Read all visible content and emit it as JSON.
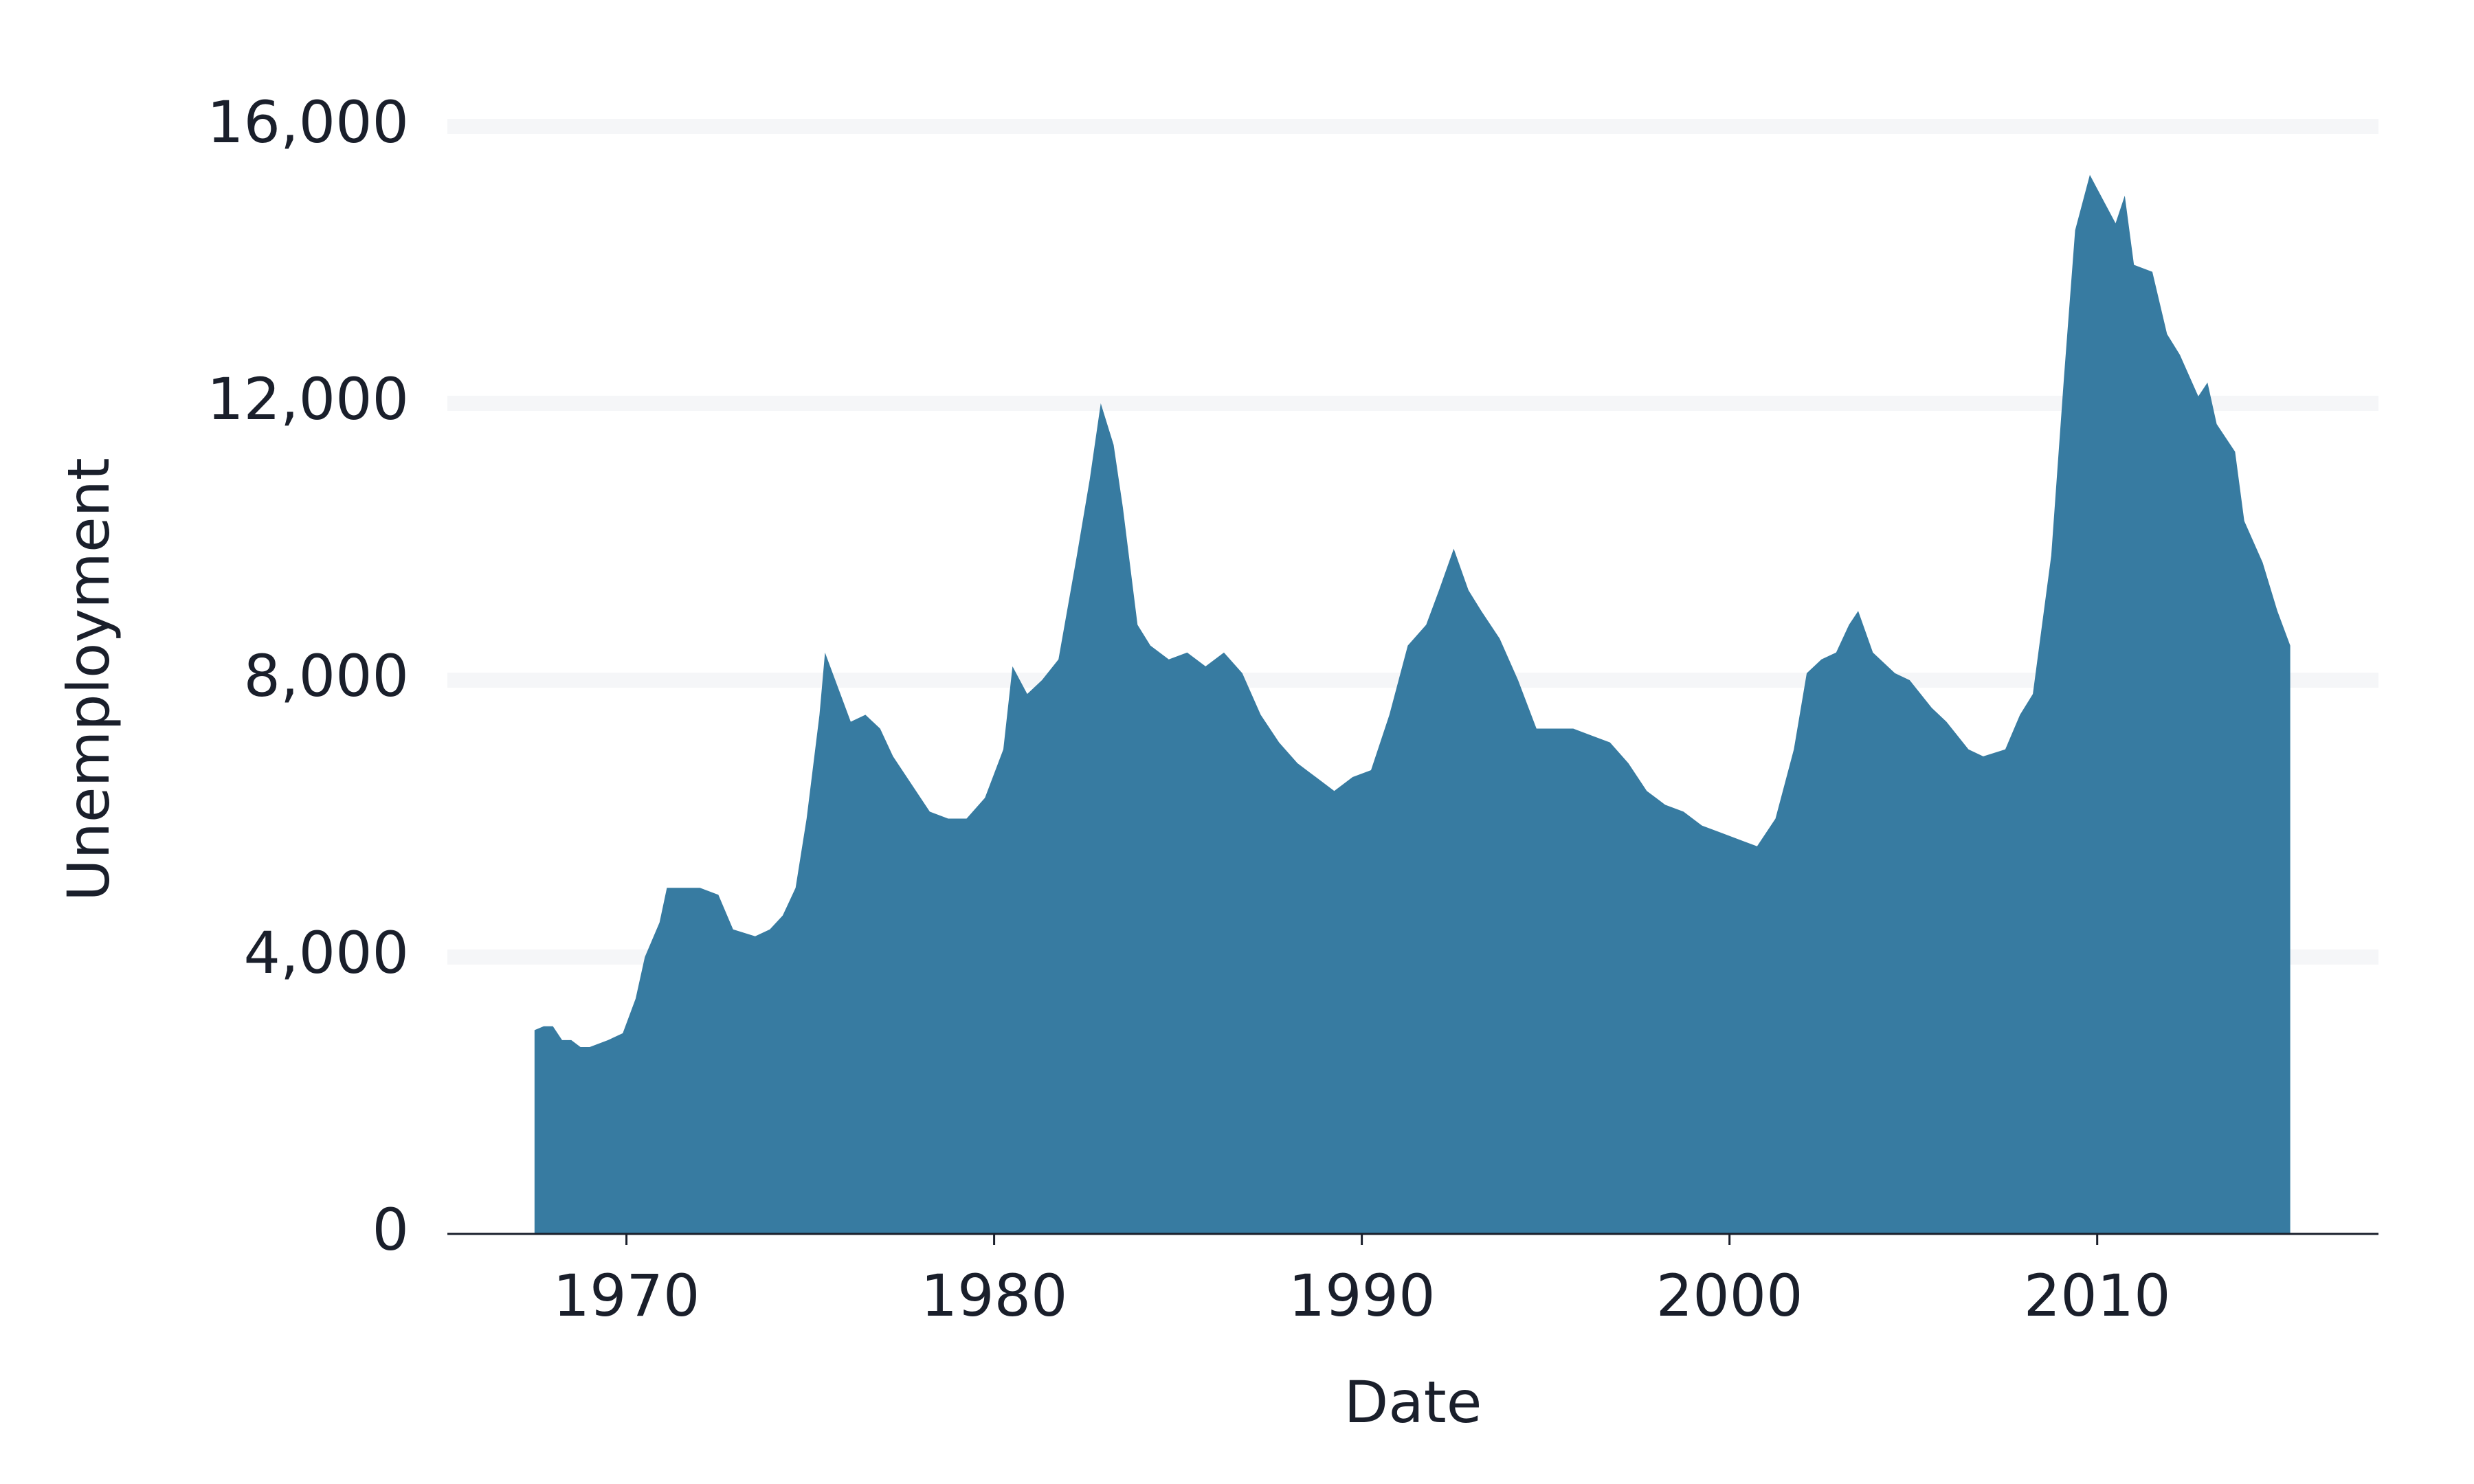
{
  "chart_data": {
    "type": "area",
    "xlabel": "Date",
    "ylabel": "Unemployment",
    "color": "#377ba1",
    "grid": true,
    "x": [
      1967.5,
      1967.75,
      1968.0,
      1968.25,
      1968.5,
      1968.75,
      1969.0,
      1969.5,
      1969.9,
      1970.25,
      1970.5,
      1970.9,
      1971.1,
      1971.5,
      1972.0,
      1972.5,
      1972.9,
      1973.5,
      1973.9,
      1974.25,
      1974.6,
      1974.9,
      1975.25,
      1975.4,
      1975.75,
      1976.1,
      1976.5,
      1976.9,
      1977.25,
      1977.75,
      1978.25,
      1978.75,
      1979.25,
      1979.75,
      1980.25,
      1980.5,
      1980.9,
      1981.3,
      1981.75,
      1982.25,
      1982.6,
      1982.9,
      1983.25,
      1983.5,
      1983.9,
      1984.25,
      1984.75,
      1985.25,
      1985.75,
      1986.25,
      1986.75,
      1987.25,
      1987.75,
      1988.25,
      1988.75,
      1989.25,
      1989.75,
      1990.25,
      1990.75,
      1991.25,
      1991.75,
      1992.1,
      1992.5,
      1992.9,
      1993.25,
      1993.75,
      1994.25,
      1994.75,
      1995.25,
      1995.75,
      1996.25,
      1996.75,
      1997.25,
      1997.75,
      1998.25,
      1998.75,
      1999.25,
      1999.75,
      2000.25,
      2000.75,
      2001.25,
      2001.75,
      2002.1,
      2002.5,
      2002.9,
      2003.25,
      2003.5,
      2003.9,
      2004.5,
      2004.9,
      2005.5,
      2005.9,
      2006.5,
      2006.9,
      2007.5,
      2007.9,
      2008.25,
      2008.75,
      2009.1,
      2009.4,
      2009.8,
      2010.1,
      2010.5,
      2010.75,
      2011.0,
      2011.5,
      2011.9,
      2012.25,
      2012.75,
      2013.0,
      2013.25,
      2013.75,
      2014.0,
      2014.5,
      2014.9,
      2015.25
    ],
    "values": [
      2944,
      3000,
      3000,
      2800,
      2800,
      2700,
      2700,
      2800,
      2900,
      3400,
      4000,
      4500,
      5000,
      5000,
      5000,
      4900,
      4400,
      4300,
      4400,
      4600,
      5000,
      6000,
      7500,
      8400,
      7900,
      7400,
      7500,
      7300,
      6900,
      6500,
      6100,
      6000,
      6000,
      6300,
      7000,
      8200,
      7800,
      8000,
      8300,
      9800,
      10900,
      12000,
      11400,
      10500,
      8800,
      8500,
      8300,
      8400,
      8200,
      8400,
      8100,
      7500,
      7100,
      6800,
      6600,
      6400,
      6600,
      6700,
      7500,
      8500,
      8800,
      9300,
      9900,
      9300,
      9000,
      8600,
      8000,
      7300,
      7300,
      7300,
      7200,
      7100,
      6800,
      6400,
      6200,
      6100,
      5900,
      5800,
      5700,
      5600,
      6000,
      7000,
      8100,
      8300,
      8400,
      8800,
      9000,
      8400,
      8100,
      8000,
      7600,
      7400,
      7000,
      6900,
      7000,
      7500,
      7800,
      9800,
      12400,
      14500,
      15300,
      15000,
      14600,
      15000,
      14000,
      13900,
      13000,
      12700,
      12100,
      12300,
      11700,
      11300,
      10300,
      9700,
      9000,
      8500
    ],
    "xlim": [
      1965.13,
      2017.65
    ],
    "xticks": [
      1970,
      1980,
      1990,
      2000,
      2010
    ],
    "ylim": [
      0,
      16000
    ],
    "yticks": [
      0,
      {
        "value": 4000,
        "label": "4,000"
      },
      {
        "value": 8000,
        "label": "8,000"
      },
      {
        "value": 12000,
        "label": "12,000"
      },
      {
        "value": 16000,
        "label": "16,000"
      }
    ]
  }
}
